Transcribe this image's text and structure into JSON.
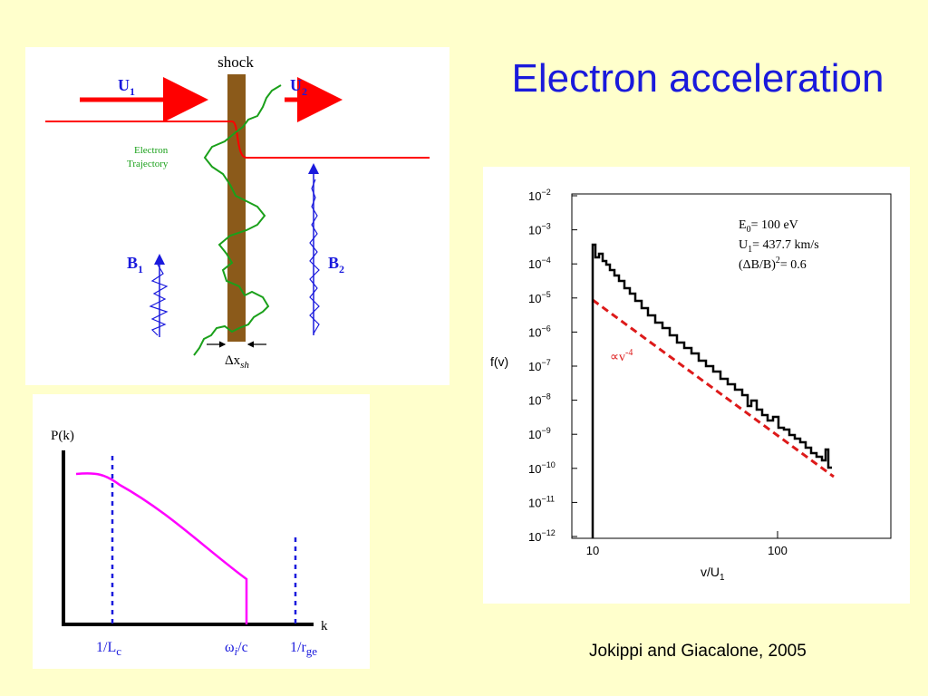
{
  "slide": {
    "title": "Electron acceleration",
    "citation": "Jokippi and Giacalone, 2005"
  },
  "shock_diagram": {
    "shock_label": "shock",
    "u1": "U",
    "u1_sub": "1",
    "u2": "U",
    "u2_sub": "2",
    "trajectory_label_line1": "Electron",
    "trajectory_label_line2": "Trajectory",
    "b1": "B",
    "b1_sub": "1",
    "b2": "B",
    "b2_sub": "2",
    "dx_delta": "Δx",
    "dx_sub": "sh",
    "colors": {
      "flow": "#ff0000",
      "trajectory": "#1aa01a",
      "field": "#1a1add",
      "shock": "#8b5a1a",
      "labels": "#1a1add"
    }
  },
  "spectrum_sketch": {
    "ylabel": "P(k)",
    "xlabel": "k",
    "tick1_main": "1/L",
    "tick1_sub": "c",
    "tick2_main": "ω",
    "tick2_sub": "i",
    "tick2_tail": "/c",
    "tick3_main": "1/r",
    "tick3_sub": "ge",
    "colors": {
      "curve": "#ff00ff",
      "markers": "#1a1add"
    }
  },
  "distribution_plot": {
    "ylabel": "f(v)",
    "xlabel_main": "v/U",
    "xlabel_sub": "1",
    "ytick_base": "10",
    "yticks_exp": [
      "−2",
      "−3",
      "−4",
      "−5",
      "−6",
      "−7",
      "−8",
      "−9",
      "−10",
      "−11",
      "−12"
    ],
    "xticks": [
      "10",
      "100"
    ],
    "annot_e0_main": "E",
    "annot_e0_sub": "0",
    "annot_e0_tail": "= 100 eV",
    "annot_u1_main": "U",
    "annot_u1_sub": "1",
    "annot_u1_tail": "= 437.7 km/s",
    "annot_db_main": "(ΔB/B)",
    "annot_db_sup": "2",
    "annot_db_tail": "= 0.6",
    "fit_label_main": "∝v",
    "fit_label_sup": "-4",
    "colors": {
      "data": "#000000",
      "fit": "#dd1a1a"
    }
  }
}
